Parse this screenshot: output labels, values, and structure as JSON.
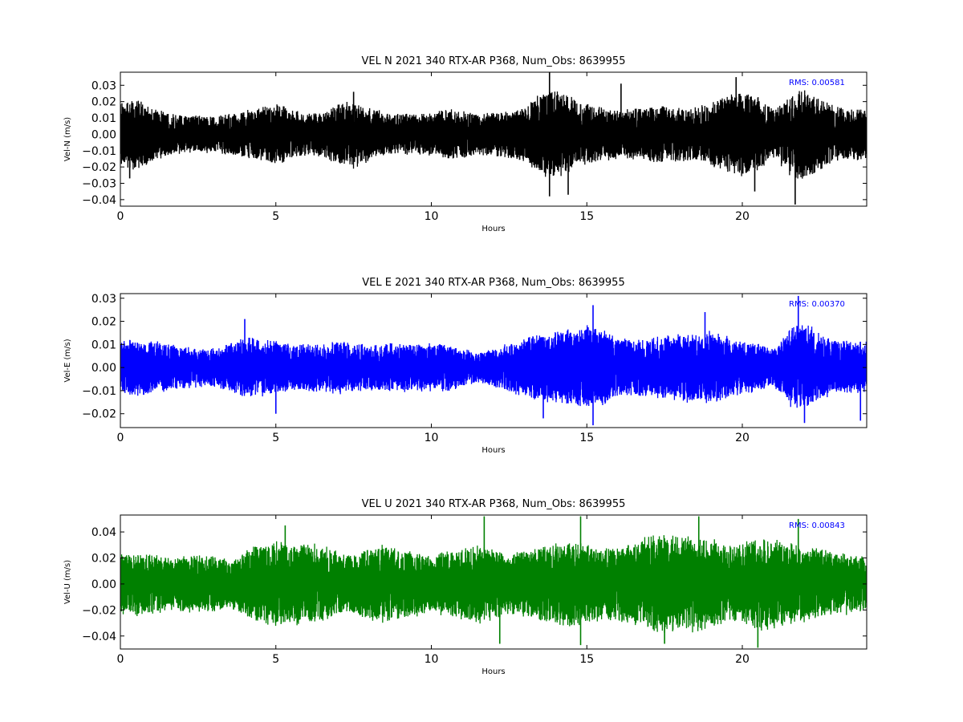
{
  "chart_data": [
    {
      "type": "line",
      "title": "VEL N 2021 340 RTX-AR  P368, Num_Obs: 8639955",
      "xlabel": "Hours",
      "ylabel": "Vel-N (m/s)",
      "xlim": [
        0,
        24
      ],
      "ylim": [
        -0.044,
        0.038
      ],
      "x_ticks": [
        0,
        5,
        10,
        15,
        20
      ],
      "x_tick_labels": [
        "0",
        "5",
        "10",
        "15",
        "20"
      ],
      "y_ticks": [
        -0.04,
        -0.03,
        -0.02,
        -0.01,
        0.0,
        0.01,
        0.02,
        0.03
      ],
      "y_tick_labels": [
        "−0.04",
        "−0.03",
        "−0.02",
        "−0.01",
        "0.00",
        "0.01",
        "0.02",
        "0.03"
      ],
      "color": "#000000",
      "grid": false,
      "annotation": "RMS:  0.00581",
      "annotation_color": "#0000ff",
      "envelope": {
        "hours": [
          0,
          0.5,
          1,
          1.5,
          2,
          2.5,
          3,
          3.5,
          4,
          4.5,
          5,
          5.5,
          6,
          6.5,
          7,
          7.5,
          8,
          8.5,
          9,
          9.5,
          10,
          10.5,
          11,
          11.5,
          12,
          12.5,
          13,
          13.5,
          14,
          14.5,
          15,
          15.5,
          16,
          16.5,
          17,
          17.5,
          18,
          18.5,
          19,
          19.5,
          20,
          20.5,
          21,
          21.5,
          22,
          22.5,
          23,
          23.5,
          24
        ],
        "amplitude": [
          0.018,
          0.022,
          0.016,
          0.013,
          0.012,
          0.011,
          0.011,
          0.012,
          0.014,
          0.016,
          0.018,
          0.015,
          0.012,
          0.013,
          0.018,
          0.02,
          0.016,
          0.013,
          0.012,
          0.012,
          0.013,
          0.015,
          0.014,
          0.012,
          0.013,
          0.014,
          0.016,
          0.024,
          0.026,
          0.022,
          0.018,
          0.016,
          0.014,
          0.015,
          0.016,
          0.017,
          0.016,
          0.016,
          0.018,
          0.024,
          0.026,
          0.022,
          0.015,
          0.024,
          0.028,
          0.022,
          0.016,
          0.015,
          0.015
        ]
      },
      "peaks": [
        {
          "x": 13.8,
          "y": 0.038
        },
        {
          "x": 13.8,
          "y": -0.038
        },
        {
          "x": 21.7,
          "y": -0.043
        },
        {
          "x": 19.8,
          "y": 0.035
        },
        {
          "x": 20.4,
          "y": -0.035
        },
        {
          "x": 0.3,
          "y": -0.027
        },
        {
          "x": 16.1,
          "y": 0.031
        },
        {
          "x": 7.5,
          "y": 0.026
        },
        {
          "x": 14.4,
          "y": -0.037
        }
      ]
    },
    {
      "type": "line",
      "title": "VEL E 2021 340 RTX-AR  P368, Num_Obs: 8639955",
      "xlabel": "Hours",
      "ylabel": "Vel-E (m/s)",
      "xlim": [
        0,
        24
      ],
      "ylim": [
        -0.026,
        0.032
      ],
      "x_ticks": [
        0,
        5,
        10,
        15,
        20
      ],
      "x_tick_labels": [
        "0",
        "5",
        "10",
        "15",
        "20"
      ],
      "y_ticks": [
        -0.02,
        -0.01,
        0.0,
        0.01,
        0.02,
        0.03
      ],
      "y_tick_labels": [
        "−0.02",
        "−0.01",
        "0.00",
        "0.01",
        "0.02",
        "0.03"
      ],
      "color": "#0000ff",
      "grid": false,
      "annotation": "RMS:  0.00370",
      "annotation_color": "#0000ff",
      "envelope": {
        "hours": [
          0,
          0.5,
          1,
          1.5,
          2,
          2.5,
          3,
          3.5,
          4,
          4.5,
          5,
          5.5,
          6,
          6.5,
          7,
          7.5,
          8,
          8.5,
          9,
          9.5,
          10,
          10.5,
          11,
          11.5,
          12,
          12.5,
          13,
          13.5,
          14,
          14.5,
          15,
          15.5,
          16,
          16.5,
          17,
          17.5,
          18,
          18.5,
          19,
          19.5,
          20,
          20.5,
          21,
          21.5,
          22,
          22.5,
          23,
          23.5,
          24
        ],
        "amplitude": [
          0.011,
          0.012,
          0.011,
          0.01,
          0.009,
          0.008,
          0.008,
          0.01,
          0.013,
          0.012,
          0.011,
          0.01,
          0.01,
          0.01,
          0.011,
          0.01,
          0.01,
          0.01,
          0.01,
          0.01,
          0.01,
          0.01,
          0.008,
          0.006,
          0.008,
          0.01,
          0.012,
          0.014,
          0.015,
          0.016,
          0.018,
          0.016,
          0.012,
          0.012,
          0.012,
          0.013,
          0.014,
          0.015,
          0.015,
          0.013,
          0.011,
          0.01,
          0.008,
          0.016,
          0.019,
          0.014,
          0.011,
          0.011,
          0.011
        ]
      },
      "peaks": [
        {
          "x": 21.8,
          "y": 0.031
        },
        {
          "x": 15.2,
          "y": 0.027
        },
        {
          "x": 15.2,
          "y": -0.025
        },
        {
          "x": 22.0,
          "y": -0.024
        },
        {
          "x": 13.6,
          "y": -0.022
        },
        {
          "x": 23.8,
          "y": -0.023
        },
        {
          "x": 18.8,
          "y": 0.024
        },
        {
          "x": 4.0,
          "y": 0.021
        },
        {
          "x": 5.0,
          "y": -0.02
        }
      ]
    },
    {
      "type": "line",
      "title": "VEL U 2021 340 RTX-AR  P368, Num_Obs: 8639955",
      "xlabel": "Hours",
      "ylabel": "Vel-U (m/s)",
      "xlim": [
        0,
        24
      ],
      "ylim": [
        -0.05,
        0.053
      ],
      "x_ticks": [
        0,
        5,
        10,
        15,
        20
      ],
      "x_tick_labels": [
        "0",
        "5",
        "10",
        "15",
        "20"
      ],
      "y_ticks": [
        -0.04,
        -0.02,
        0.0,
        0.02,
        0.04
      ],
      "y_tick_labels": [
        "−0.04",
        "−0.02",
        "0.00",
        "0.02",
        "0.04"
      ],
      "color": "#008000",
      "grid": false,
      "annotation": "RMS:  0.00843",
      "annotation_color": "#0000ff",
      "envelope": {
        "hours": [
          0,
          0.5,
          1,
          1.5,
          2,
          2.5,
          3,
          3.5,
          4,
          4.5,
          5,
          5.5,
          6,
          6.5,
          7,
          7.5,
          8,
          8.5,
          9,
          9.5,
          10,
          10.5,
          11,
          11.5,
          12,
          12.5,
          13,
          13.5,
          14,
          14.5,
          15,
          15.5,
          16,
          16.5,
          17,
          17.5,
          18,
          18.5,
          19,
          19.5,
          20,
          20.5,
          21,
          21.5,
          22,
          22.5,
          23,
          23.5,
          24
        ],
        "amplitude": [
          0.022,
          0.024,
          0.022,
          0.02,
          0.02,
          0.021,
          0.021,
          0.018,
          0.024,
          0.03,
          0.032,
          0.03,
          0.03,
          0.028,
          0.024,
          0.022,
          0.026,
          0.03,
          0.026,
          0.024,
          0.022,
          0.024,
          0.026,
          0.03,
          0.026,
          0.022,
          0.024,
          0.028,
          0.03,
          0.032,
          0.03,
          0.026,
          0.028,
          0.032,
          0.036,
          0.036,
          0.034,
          0.036,
          0.034,
          0.028,
          0.03,
          0.036,
          0.034,
          0.03,
          0.028,
          0.026,
          0.024,
          0.022,
          0.02
        ]
      },
      "peaks": [
        {
          "x": 11.7,
          "y": 0.052
        },
        {
          "x": 14.8,
          "y": 0.052
        },
        {
          "x": 18.6,
          "y": 0.052
        },
        {
          "x": 20.5,
          "y": -0.049
        },
        {
          "x": 14.8,
          "y": -0.047
        },
        {
          "x": 12.2,
          "y": -0.046
        },
        {
          "x": 5.3,
          "y": 0.045
        },
        {
          "x": 21.8,
          "y": 0.05
        },
        {
          "x": 17.5,
          "y": -0.046
        }
      ]
    }
  ]
}
